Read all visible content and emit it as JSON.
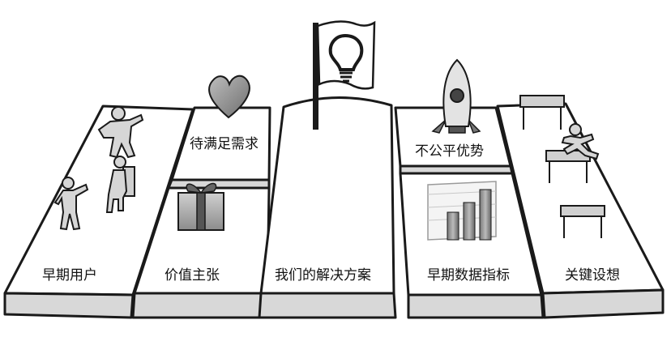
{
  "labels": {
    "early_users": "早期用户",
    "value_prop": "价值主张",
    "needs": "待满足需求",
    "solution": "我们的解决方案",
    "advantage": "不公平优势",
    "early_data": "早期数据指标",
    "assumptions": "关键设想"
  }
}
